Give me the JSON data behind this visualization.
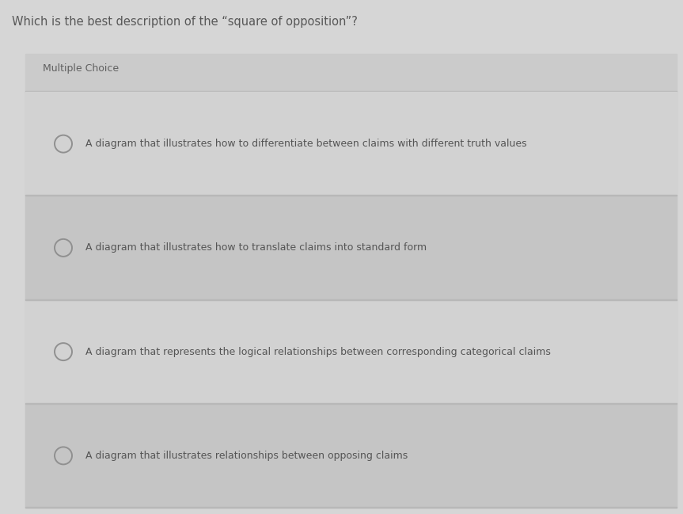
{
  "title": "Which is the best description of the “square of opposition”?",
  "subtitle": "Multiple Choice",
  "options": [
    "A diagram that illustrates how to differentiate between claims with different truth values",
    "A diagram that illustrates how to translate claims into standard form",
    "A diagram that represents the logical relationships between corresponding categorical claims",
    "A diagram that illustrates relationships between opposing claims"
  ],
  "bg_page": "#d6d6d6",
  "bg_card": "#cbcbcb",
  "bg_row_light": "#d2d2d2",
  "bg_row_dark": "#c5c5c5",
  "bg_separator": "#b8b8b8",
  "title_color": "#585858",
  "subtitle_color": "#606060",
  "option_text_color": "#555555",
  "circle_edge_color": "#909090",
  "title_fontsize": 10.5,
  "subtitle_fontsize": 9.0,
  "option_fontsize": 9.0,
  "fig_w": 8.63,
  "fig_h": 6.49,
  "dpi": 100
}
